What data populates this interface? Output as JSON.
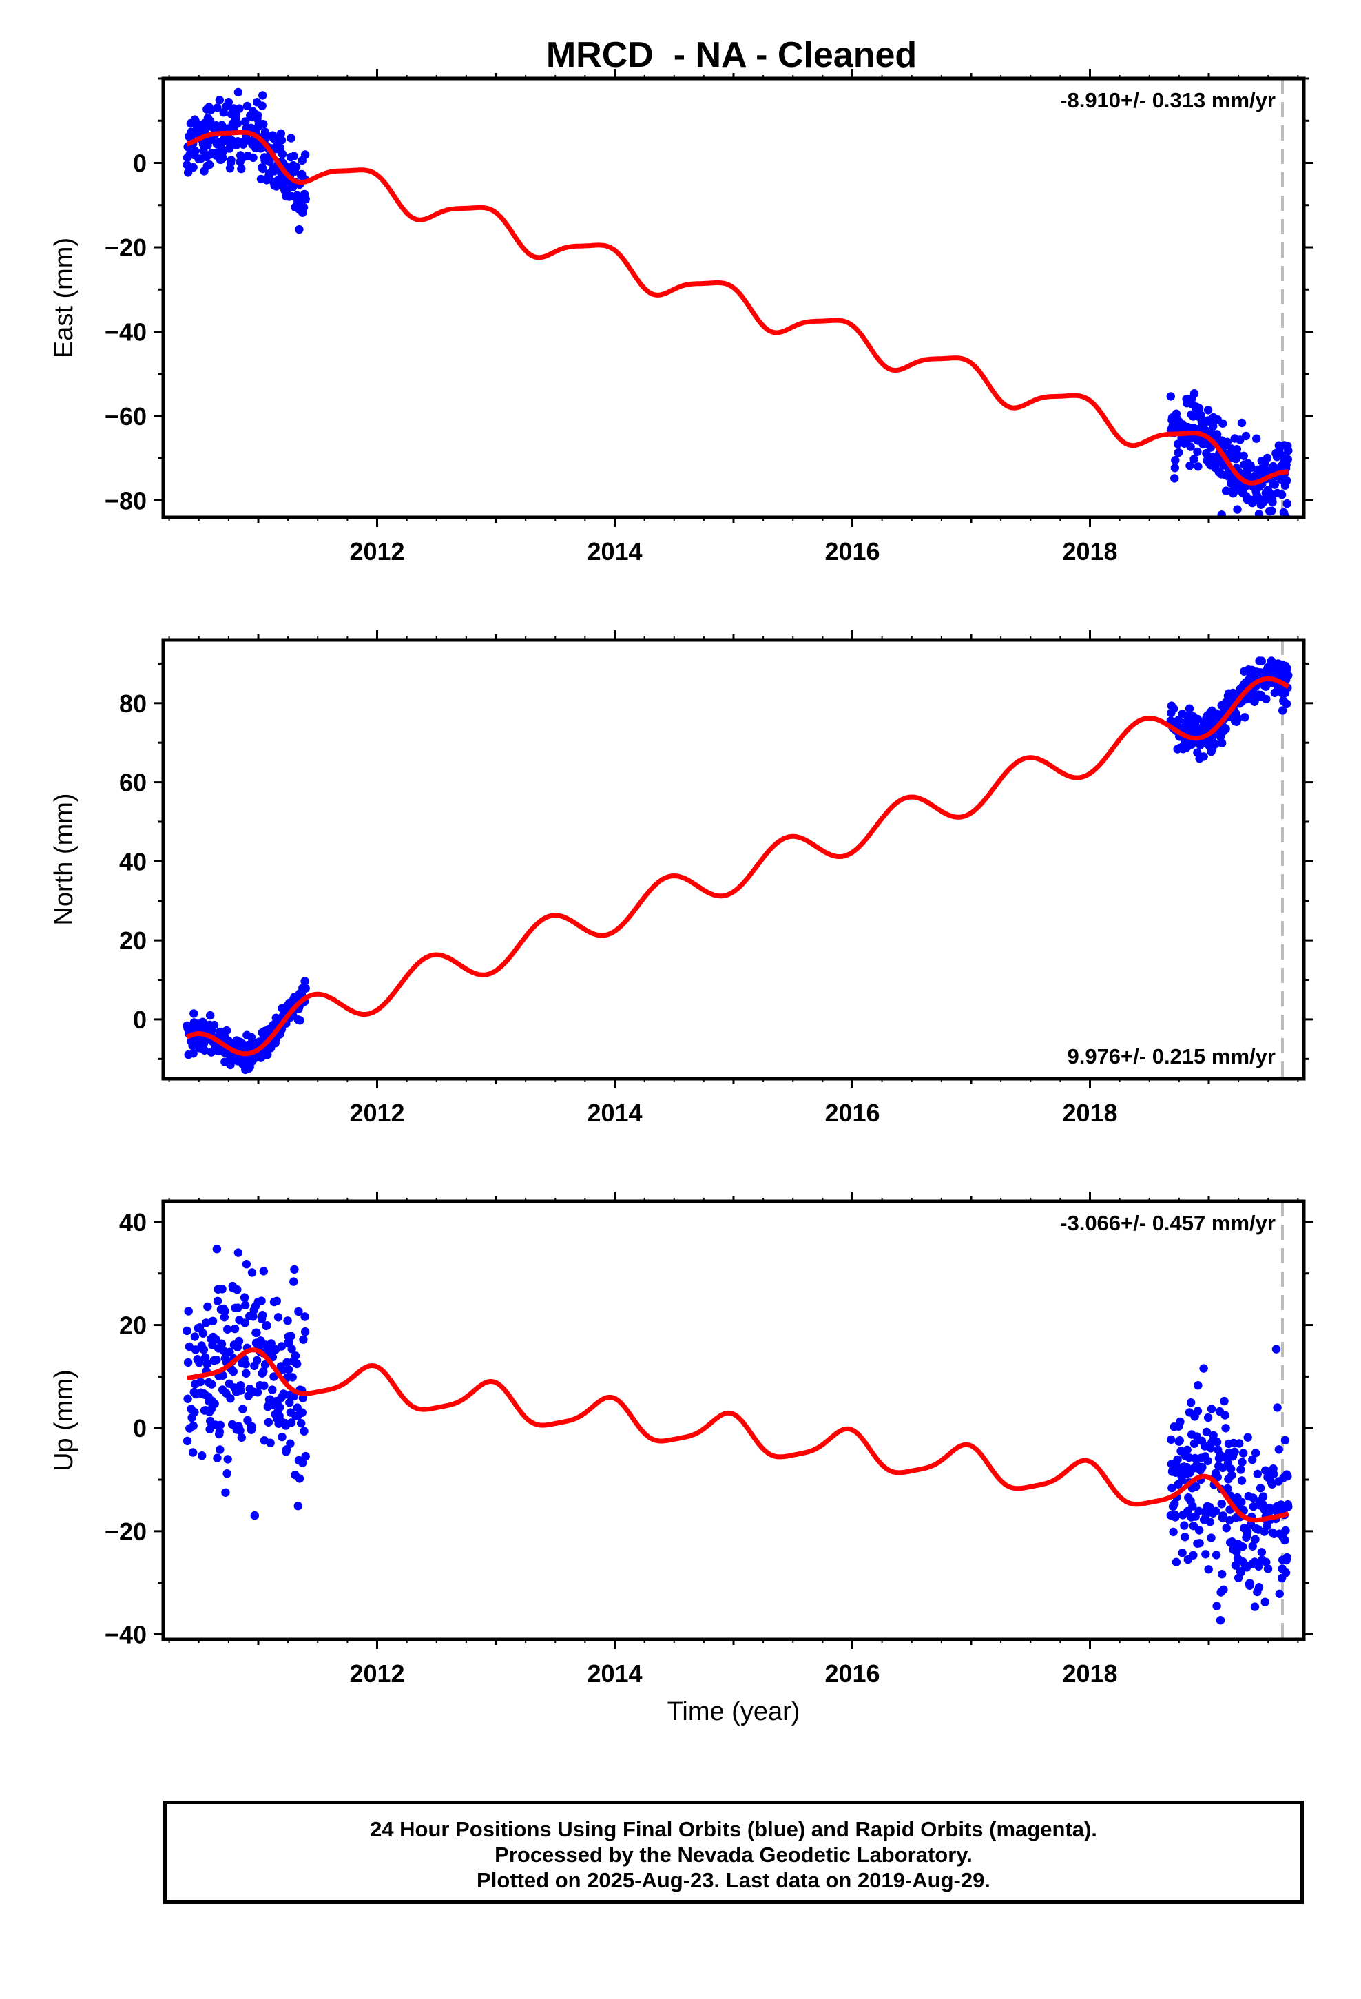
{
  "chart_data": {
    "type": "scatter",
    "title": "MRCD  - NA - Cleaned",
    "x_axis": {
      "label": "Time (year)",
      "range": [
        2010.2,
        2019.8
      ],
      "ticks": [
        2012,
        2014,
        2016,
        2018
      ],
      "tick_labels": [
        "2012",
        "2014",
        "2016",
        "2018"
      ]
    },
    "vertical_marker_x": 2019.62,
    "colors": {
      "daily_positions": "#0000ff",
      "model_fit": "#ff0000",
      "marker_line": "#bbbbbb"
    },
    "panels": [
      {
        "id": "east",
        "ylabel": "East (mm)",
        "ylim": [
          -84,
          20
        ],
        "yticks": [
          -80,
          -60,
          -40,
          -20,
          0
        ],
        "ytick_labels": [
          "−80",
          "−60",
          "−40",
          "−20",
          "0"
        ],
        "rate_text": "-8.910+/- 0.313 mm/yr",
        "rate_position": "top-right",
        "data_segments": [
          {
            "x_start": 2010.4,
            "x_end": 2011.4,
            "scatter_mm": 4.5
          },
          {
            "x_start": 2018.68,
            "x_end": 2019.67,
            "scatter_mm": 4.0
          }
        ],
        "fit": {
          "type": "linear_plus_annual",
          "rate_mm_yr": -8.91,
          "ref_year": 2015,
          "value_at_ref_mm": -32.8,
          "annual_cos": 2.4,
          "annual_sin": -2.8,
          "semiannual_cos": 0.8,
          "semiannual_sin": 0.4
        }
      },
      {
        "id": "north",
        "ylabel": "North (mm)",
        "ylim": [
          -15,
          96
        ],
        "yticks": [
          0,
          20,
          40,
          60,
          80
        ],
        "ytick_labels": [
          "0",
          "20",
          "40",
          "60",
          "80"
        ],
        "rate_text": "9.976+/- 0.215 mm/yr",
        "rate_position": "bottom-right",
        "data_segments": [
          {
            "x_start": 2010.4,
            "x_end": 2011.4,
            "scatter_mm": 1.8
          },
          {
            "x_start": 2018.68,
            "x_end": 2019.67,
            "scatter_mm": 2.6
          }
        ],
        "fit": {
          "type": "linear_plus_annual",
          "rate_mm_yr": 9.976,
          "ref_year": 2015,
          "value_at_ref_mm": 36.8,
          "annual_cos": -4.5,
          "annual_sin": 1.6,
          "semiannual_cos": 0.0,
          "semiannual_sin": 0.0
        }
      },
      {
        "id": "up",
        "ylabel": "Up (mm)",
        "ylim": [
          -41,
          44
        ],
        "yticks": [
          -40,
          -20,
          0,
          20,
          40
        ],
        "ytick_labels": [
          "−40",
          "−20",
          "0",
          "20",
          "40"
        ],
        "rate_text": "-3.066+/- 0.457 mm/yr",
        "rate_position": "top-right",
        "data_segments": [
          {
            "x_start": 2010.4,
            "x_end": 2011.4,
            "scatter_mm": 9.5
          },
          {
            "x_start": 2018.68,
            "x_end": 2019.67,
            "scatter_mm": 8.5
          }
        ],
        "fit": {
          "type": "linear_plus_annual",
          "rate_mm_yr": -3.066,
          "ref_year": 2015,
          "value_at_ref_mm": -1.3,
          "annual_cos": 3.2,
          "annual_sin": -1.2,
          "semiannual_cos": 0.8,
          "semiannual_sin": 0.0
        }
      }
    ]
  },
  "footer": {
    "line1": "24 Hour Positions Using Final Orbits (blue) and Rapid Orbits (magenta).",
    "line2": "Processed by the Nevada Geodetic Laboratory.",
    "line3": "Plotted on 2025-Aug-23. Last data on 2019-Aug-29."
  }
}
